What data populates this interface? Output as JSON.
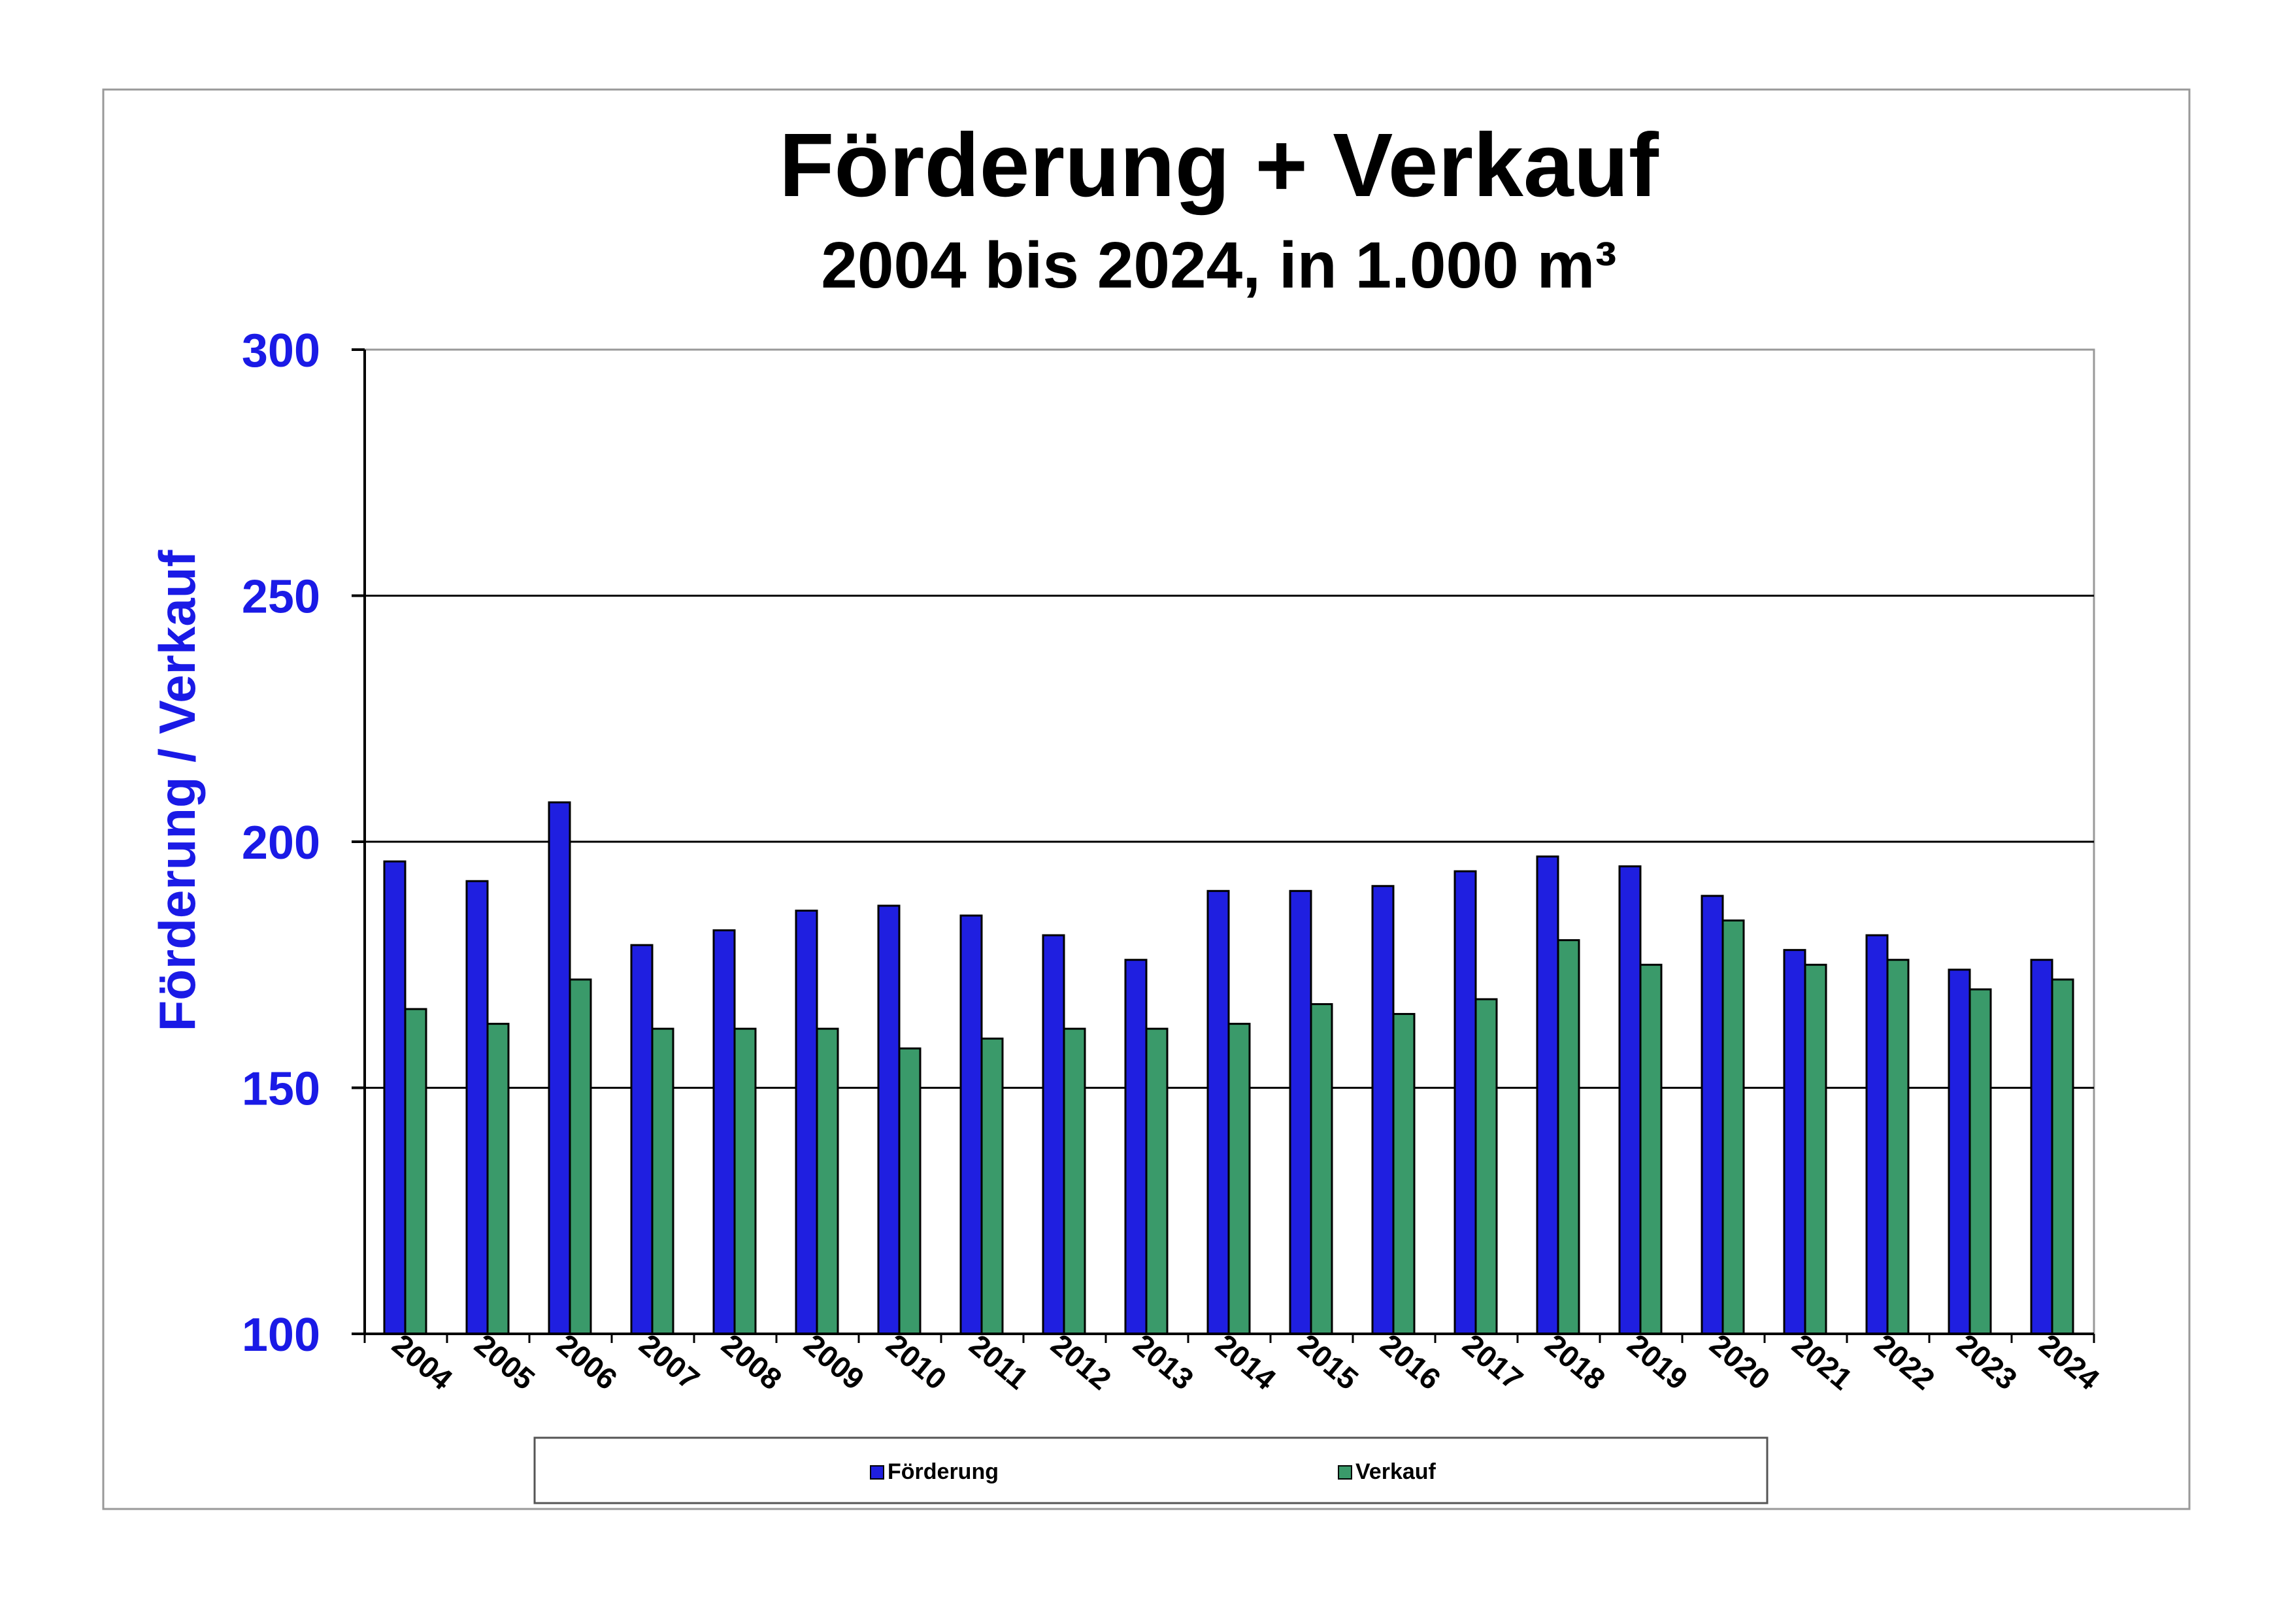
{
  "chart_data": {
    "type": "bar",
    "title": "Förderung + Verkauf",
    "subtitle": "2004 bis 2024, in 1.000 m³",
    "xlabel": "",
    "ylabel": "Förderung / Verkauf",
    "ylim": [
      100,
      300
    ],
    "yticks": [
      "100",
      "150",
      "200",
      "250",
      "300"
    ],
    "grid": true,
    "legend_position": "bottom",
    "categories": [
      "2004",
      "2005",
      "2006",
      "2007",
      "2008",
      "2009",
      "2010",
      "2011",
      "2012",
      "2013",
      "2014",
      "2015",
      "2016",
      "2017",
      "2018",
      "2019",
      "2020",
      "2021",
      "2022",
      "2023",
      "2024"
    ],
    "series": [
      {
        "name": "Förderung",
        "color": "#1f1fe0",
        "values": [
          196,
          192,
          208,
          179,
          182,
          186,
          187,
          185,
          181,
          176,
          190,
          190,
          191,
          194,
          197,
          195,
          189,
          178,
          181,
          174,
          176
        ]
      },
      {
        "name": "Verkauf",
        "color": "#3a9a6a",
        "values": [
          166,
          163,
          172,
          162,
          162,
          162,
          158,
          160,
          162,
          162,
          163,
          167,
          165,
          168,
          180,
          175,
          184,
          175,
          176,
          170,
          172
        ]
      }
    ],
    "colors": {
      "axis_labels": "#1a1ae6",
      "text": "#000000",
      "gridline": "#000000",
      "frame": "#999999"
    }
  }
}
